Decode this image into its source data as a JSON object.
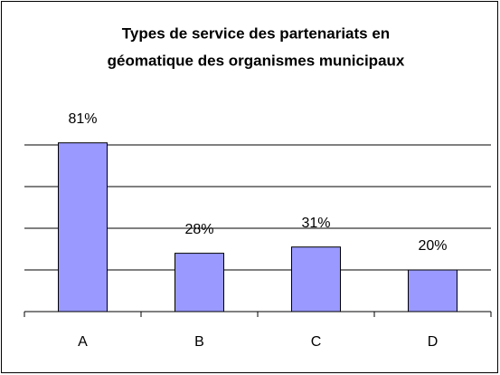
{
  "chart_data": {
    "type": "bar",
    "title": [
      "Types de service des partenariats en",
      "géomatique des organismes municipaux"
    ],
    "categories": [
      "A",
      "B",
      "C",
      "D"
    ],
    "values": [
      81,
      28,
      31,
      20
    ],
    "value_labels": [
      "81%",
      "28%",
      "31%",
      "20%"
    ],
    "color": "#9999ff",
    "ylim": [
      0,
      100
    ],
    "yticks": [
      0,
      20,
      40,
      60,
      80
    ],
    "grid": true
  }
}
